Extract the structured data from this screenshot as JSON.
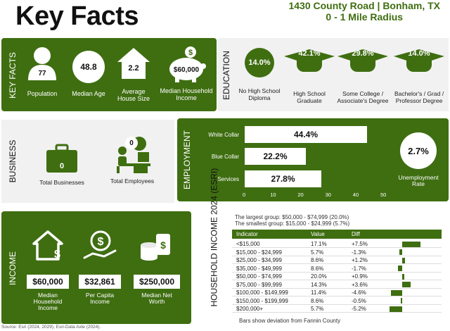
{
  "title": "Key Facts",
  "address": {
    "line1": "1430 County Road | Bonham, TX",
    "line2": "0 - 1 Mile Radius"
  },
  "key_facts": {
    "label": "KEY FACTS",
    "items": [
      {
        "value": "77",
        "label": "Population",
        "icon": "person-icon"
      },
      {
        "value": "48.8",
        "label": "Median Age",
        "icon": "circle-icon"
      },
      {
        "value": "2.2",
        "label": "Average House Size",
        "icon": "house-icon"
      },
      {
        "value": "$60,000",
        "label": "Median Household Income",
        "icon": "piggy-bank-icon"
      }
    ]
  },
  "education": {
    "label": "EDUCATION",
    "items": [
      {
        "value": "14.0%",
        "label": "No High School Diploma"
      },
      {
        "value": "42.1%",
        "label": "High School Graduate"
      },
      {
        "value": "29.8%",
        "label": "Some College / Associate's Degree"
      },
      {
        "value": "14.0%",
        "label": "Bachelor's / Grad / Professor Degree"
      }
    ]
  },
  "business": {
    "label": "BUSINESS",
    "total_businesses": {
      "value": "0",
      "label": "Total Businesses"
    },
    "total_employees": {
      "value": "0",
      "label": "Total Employees"
    }
  },
  "employment": {
    "label": "EMPLOYMENT",
    "rows": [
      {
        "label": "White Collar",
        "value": 44.4,
        "text": "44.4%"
      },
      {
        "label": "Blue Collar",
        "value": 22.2,
        "text": "22.2%"
      },
      {
        "label": "Services",
        "value": 27.8,
        "text": "27.8%"
      }
    ],
    "ticks": [
      "0",
      "10",
      "20",
      "30",
      "40",
      "50"
    ],
    "unemployment": {
      "value": "2.7%",
      "label": "Unemployment Rate"
    }
  },
  "income": {
    "label": "INCOME",
    "items": [
      {
        "value": "$60,000",
        "label": "Median Household Income"
      },
      {
        "value": "$32,861",
        "label": "Per Capita Income"
      },
      {
        "value": "$250,000",
        "label": "Median Net Worth"
      }
    ]
  },
  "household_income": {
    "label": "HOUSEHOLD INCOME 2024 (ESRI)",
    "largest": "The largest group: $50,000 - $74,999 (20.0%)",
    "smallest": "The smallest group: $15,000 - $24,999 (5.7%)",
    "headers": [
      "Indicator",
      "Value",
      "Diff"
    ],
    "rows": [
      {
        "indicator": "<$15,000",
        "value": "17.1%",
        "diff": "+7.5%",
        "d": 7.5
      },
      {
        "indicator": "$15,000 - $24,999",
        "value": "5.7%",
        "diff": "-1.3%",
        "d": -1.3
      },
      {
        "indicator": "$25,000 - $34,999",
        "value": "8.6%",
        "diff": "+1.2%",
        "d": 1.2
      },
      {
        "indicator": "$35,000 - $49,999",
        "value": "8.6%",
        "diff": "-1.7%",
        "d": -1.7
      },
      {
        "indicator": "$50,000 - $74,999",
        "value": "20.0%",
        "diff": "+0.9%",
        "d": 0.9
      },
      {
        "indicator": "$75,000 - $99,999",
        "value": "14.3%",
        "diff": "+3.6%",
        "d": 3.6
      },
      {
        "indicator": "$100,000 - $149,999",
        "value": "11.4%",
        "diff": "-4.6%",
        "d": -4.6
      },
      {
        "indicator": "$150,000 - $199,999",
        "value": "8.6%",
        "diff": "-0.5%",
        "d": -0.5
      },
      {
        "indicator": "$200,000+",
        "value": "5.7%",
        "diff": "-5.2%",
        "d": -5.2
      }
    ],
    "footnote": "Bars show deviation from Fannin County"
  },
  "source": "Source: Esri (2024, 2029), Esri-Data Axle (2024)."
}
